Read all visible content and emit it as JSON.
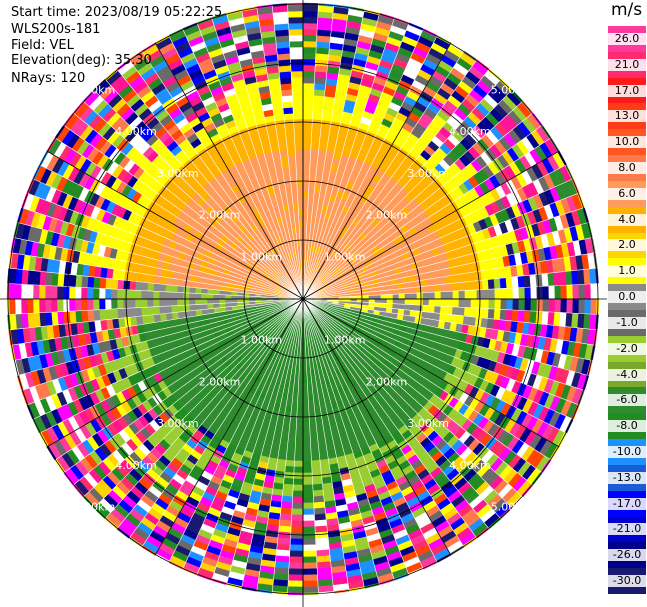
{
  "info": {
    "start_time": "Start time: 2023/08/19 05:22:25",
    "site": "WLS200s-181",
    "field": "Field: VEL",
    "elevation": "Elevation(deg): 35.30",
    "nrays": "NRays: 120"
  },
  "chart_data": {
    "type": "heatmap",
    "projection": "polar PPI",
    "range_rings_labels": [
      "1.00km",
      "2.00km",
      "3.00km",
      "4.00km",
      "5.00km"
    ],
    "unit": "m/s",
    "colorbar_ticks": [
      "26.0",
      "21.0",
      "17.0",
      "13.0",
      "10.0",
      "8.0",
      "6.0",
      "4.0",
      "2.0",
      "1.0",
      "0.0",
      "-1.0",
      "-2.0",
      "-4.0",
      "-6.0",
      "-8.0",
      "-10.0",
      "-13.0",
      "-17.0",
      "-21.0",
      "-26.0",
      "-30.0"
    ],
    "colorbar_colors": [
      "#ff3a9e",
      "#ff2b6c",
      "#ff1a1a",
      "#ff3b1a",
      "#ff5722",
      "#ff7a4a",
      "#ff9c5c",
      "#ffb300",
      "#ffd400",
      "#ffff00",
      "#8a8a8a",
      "#6a6a6a",
      "#9acd32",
      "#7aa82a",
      "#2e8b2e",
      "#228b22",
      "#1e90ff",
      "#1a5bd6",
      "#0000ff",
      "#0000cd",
      "#00008b",
      "#191970"
    ],
    "nrays": 120,
    "elevation_deg": 35.3
  }
}
